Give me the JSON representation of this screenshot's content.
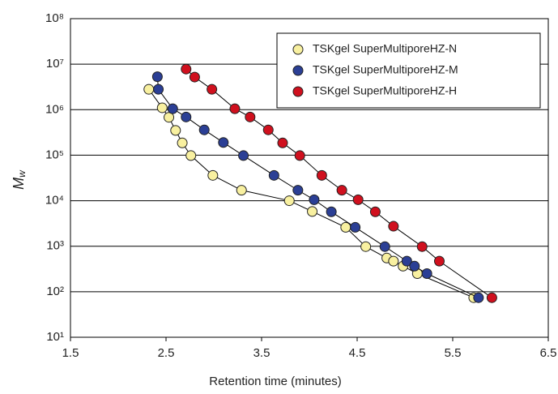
{
  "chart_data": {
    "type": "line",
    "x_label": "Retention time (minutes)",
    "y_label": "M",
    "y_label_subscript": "w",
    "log_y": true,
    "grid": true,
    "legend": "top-right",
    "xlim": [
      1.5,
      6.5
    ],
    "xticks": [
      1.5,
      2.5,
      3.5,
      4.5,
      5.5,
      6.5
    ],
    "ylim": [
      10,
      100000000
    ],
    "yticks": [
      {
        "value": 10,
        "label": "10¹"
      },
      {
        "value": 100,
        "label": "10²"
      },
      {
        "value": 1000,
        "label": "10³"
      },
      {
        "value": 10000,
        "label": "10⁴"
      },
      {
        "value": 100000,
        "label": "10⁵"
      },
      {
        "value": 1000000,
        "label": "10⁶"
      },
      {
        "value": 10000000,
        "label": "10⁷"
      },
      {
        "value": 100000000,
        "label": "10⁸"
      }
    ],
    "series": [
      {
        "name": "TSKgel SuperMultiporeHZ-N",
        "color": "#f8f0a0",
        "x": [
          2.32,
          2.46,
          2.53,
          2.6,
          2.67,
          2.76,
          2.99,
          3.29,
          3.79,
          4.03,
          4.38,
          4.59,
          4.81,
          4.88,
          4.98,
          5.13,
          5.72
        ],
        "values": [
          2800000,
          1100000,
          680000,
          350000,
          186000,
          98000,
          36000,
          17000,
          10000,
          5800,
          2600,
          980,
          550,
          470,
          365,
          250,
          74
        ]
      },
      {
        "name": "TSKgel SuperMultiporeHZ-M",
        "color": "#2b3f95",
        "x": [
          2.41,
          2.42,
          2.57,
          2.71,
          2.9,
          3.1,
          3.31,
          3.63,
          3.88,
          4.05,
          4.23,
          4.48,
          4.79,
          5.02,
          5.1,
          5.23,
          5.77
        ],
        "values": [
          5300000,
          2800000,
          1050000,
          690000,
          360000,
          190000,
          98000,
          36000,
          17000,
          10500,
          5700,
          2600,
          980,
          470,
          365,
          250,
          74
        ]
      },
      {
        "name": "TSKgel SuperMultiporeHZ-H",
        "color": "#d0101e",
        "x": [
          2.71,
          2.8,
          2.98,
          3.22,
          3.38,
          3.57,
          3.72,
          3.9,
          4.13,
          4.34,
          4.51,
          4.69,
          4.88,
          5.18,
          5.36,
          5.91
        ],
        "values": [
          7800000,
          5200000,
          2800000,
          1050000,
          690000,
          360000,
          186000,
          98000,
          36000,
          17000,
          10500,
          5700,
          2750,
          980,
          470,
          74
        ]
      }
    ]
  }
}
